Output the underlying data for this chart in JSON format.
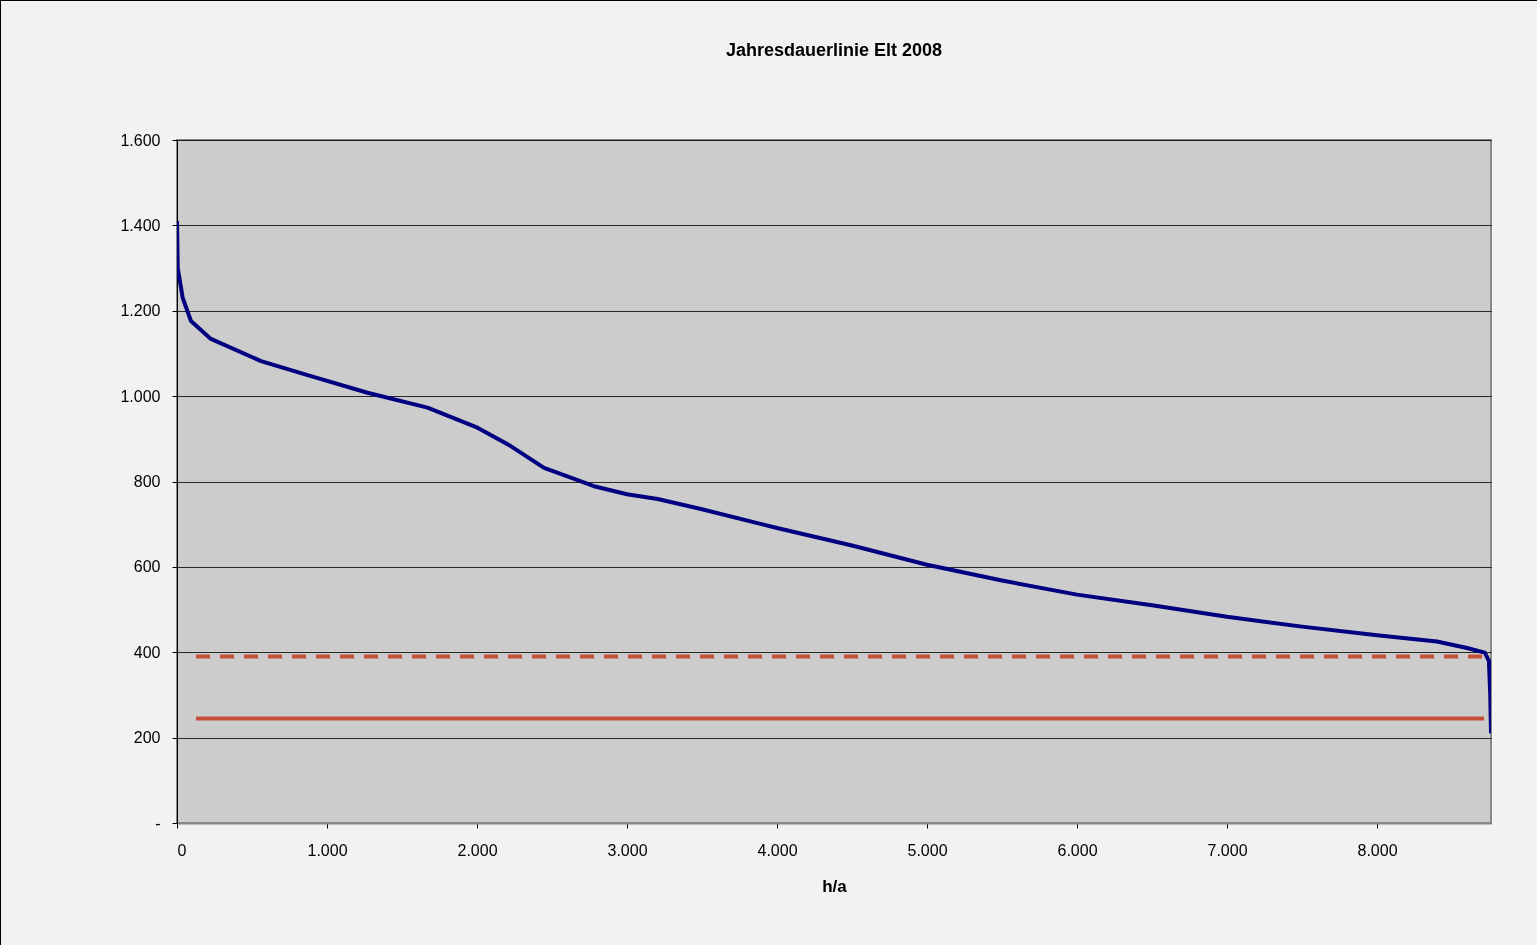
{
  "chart_data": {
    "type": "line",
    "title": "Jahresdauerlinie Elt 2008",
    "xlabel": "h/a",
    "xlim": [
      0,
      8760
    ],
    "xticks": [
      0,
      {
        "value": 1000,
        "label": "1.000"
      },
      {
        "value": 2000,
        "label": "2.000"
      },
      {
        "value": 3000,
        "label": "3.000"
      },
      {
        "value": 4000,
        "label": "4.000"
      },
      {
        "value": 5000,
        "label": "5.000"
      },
      {
        "value": 6000,
        "label": "6.000"
      },
      {
        "value": 7000,
        "label": "7.000"
      },
      {
        "value": 8000,
        "label": "8.000"
      }
    ],
    "ylim": [
      0,
      1600
    ],
    "yticks": [
      {
        "value": 0,
        "label": "-"
      },
      200,
      400,
      600,
      800,
      {
        "value": 1000,
        "label": "1.000"
      },
      {
        "value": 1200,
        "label": "1.200"
      },
      {
        "value": 1400,
        "label": "1.400"
      },
      {
        "value": 1600,
        "label": "1.600"
      }
    ],
    "grid": "y",
    "series": [
      {
        "color": "#000080",
        "line_style": "solid",
        "x": [
          0,
          5,
          38,
          93,
          226,
          560,
          893,
          1270,
          1670,
          2003,
          2225,
          2447,
          2780,
          3000,
          3204,
          3500,
          4000,
          4500,
          5000,
          5500,
          6000,
          6500,
          7000,
          7500,
          8000,
          8400,
          8600,
          8719,
          8746,
          8755,
          8760
        ],
        "values": [
          1410,
          1300,
          1230,
          1176,
          1134,
          1082,
          1047,
          1008,
          973,
          926,
          883,
          832,
          789,
          770,
          759,
          735,
          691,
          650,
          605,
          568,
          535,
          510,
          483,
          460,
          440,
          425,
          410,
          399,
          380,
          300,
          210
        ]
      },
      {
        "color": "#c4503a",
        "line_style": "dashed",
        "x": [
          127,
          8714
        ],
        "values": [
          390,
          390
        ]
      },
      {
        "color": "#c4503a",
        "line_style": "solid",
        "x": [
          127,
          8714
        ],
        "values": [
          245,
          245
        ]
      }
    ]
  }
}
